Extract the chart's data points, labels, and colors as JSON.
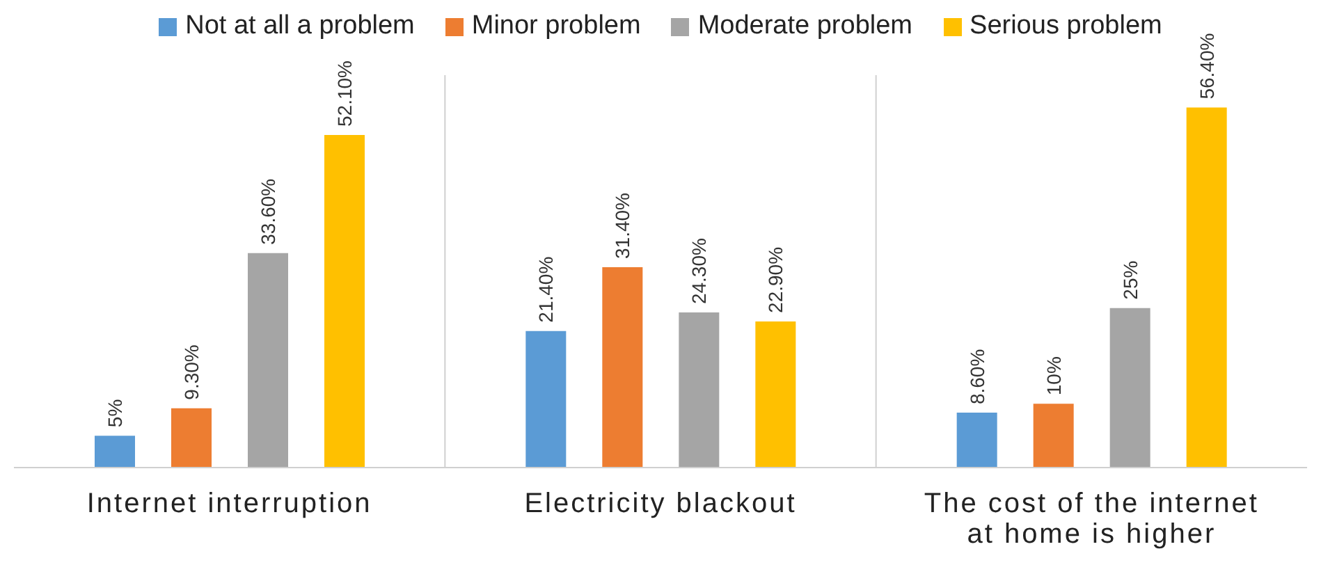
{
  "chart_data": {
    "type": "bar",
    "categories": [
      "Internet interruption",
      "Electricity blackout",
      "The cost of the internet at home is higher"
    ],
    "series": [
      {
        "name": "Not at all a problem",
        "color": "#5b9bd5",
        "values": [
          5,
          21.4,
          8.6
        ],
        "value_labels": [
          "5%",
          "21.40%",
          "8.60%"
        ]
      },
      {
        "name": "Minor problem",
        "color": "#ed7d31",
        "values": [
          9.3,
          31.4,
          10
        ],
        "value_labels": [
          "9.30%",
          "31.40%",
          "10%"
        ]
      },
      {
        "name": "Moderate problem",
        "color": "#a5a5a5",
        "values": [
          33.6,
          24.3,
          25
        ],
        "value_labels": [
          "33.60%",
          "24.30%",
          "25%"
        ]
      },
      {
        "name": "Serious problem",
        "color": "#ffc000",
        "values": [
          52.1,
          22.9,
          56.4
        ],
        "value_labels": [
          "52.10%",
          "22.90%",
          "56.40%"
        ]
      }
    ],
    "legend": "top",
    "grid": false
  }
}
